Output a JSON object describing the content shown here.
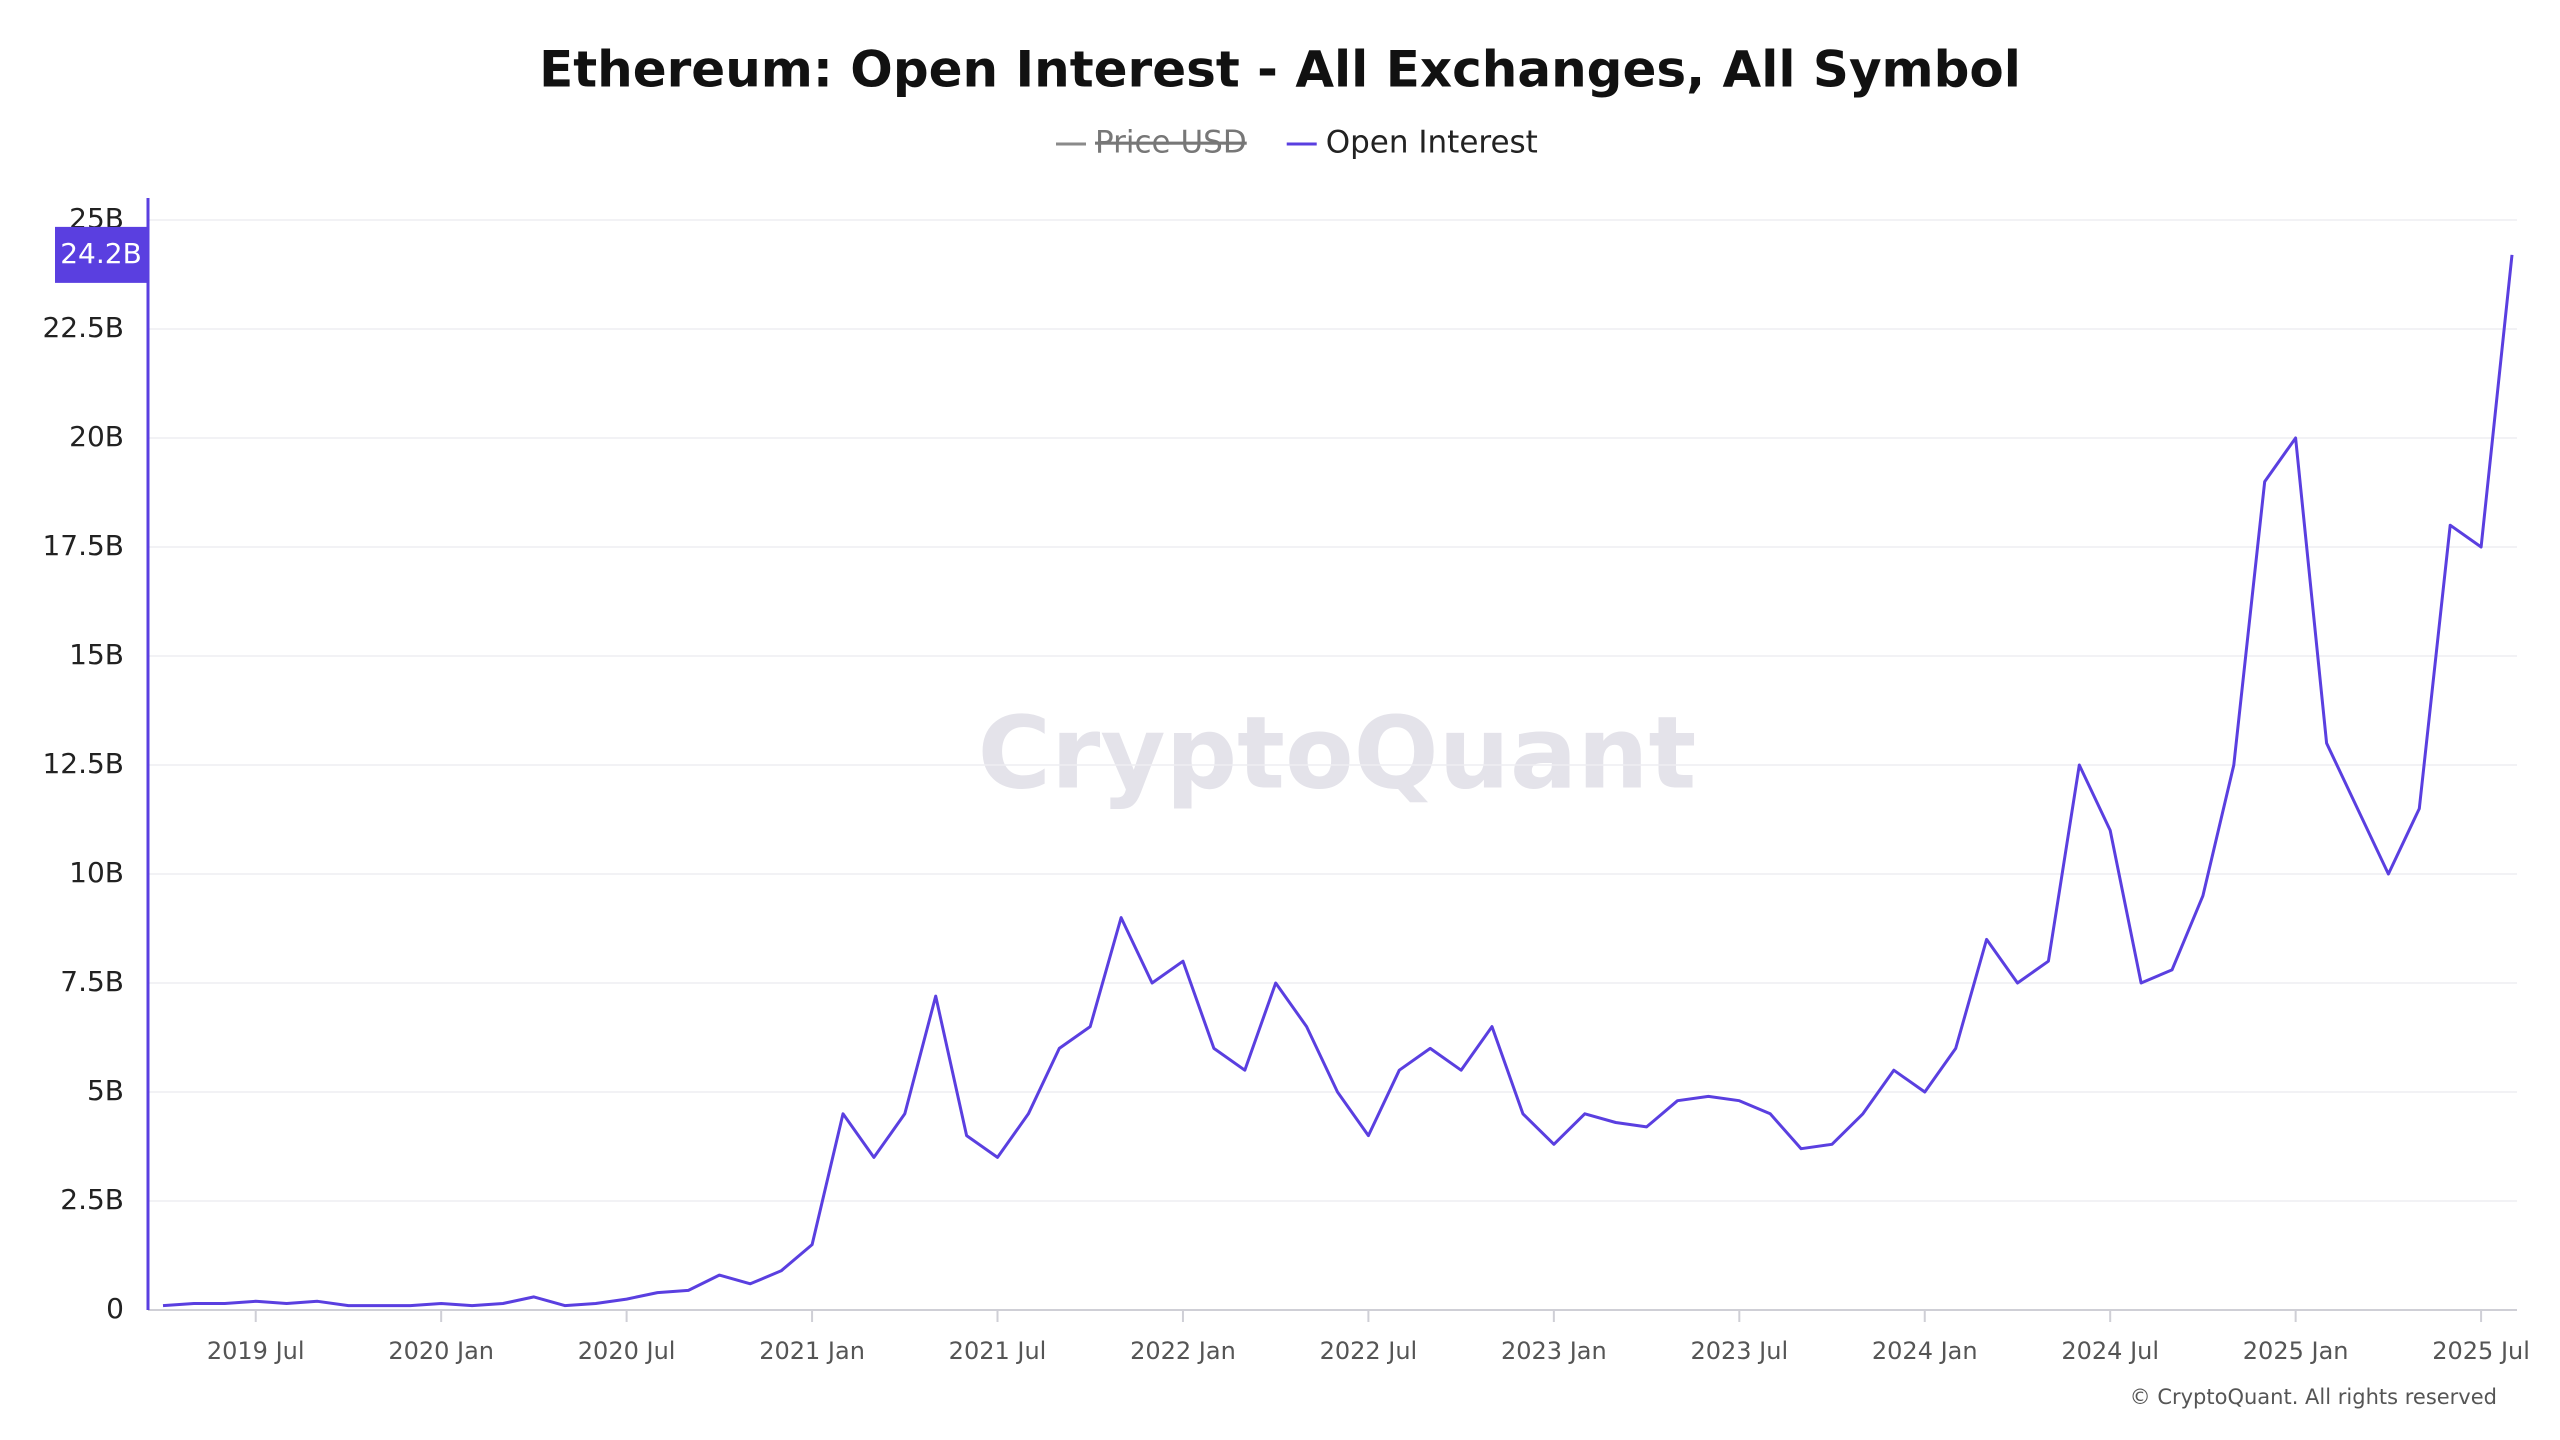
{
  "chart_data": {
    "type": "line",
    "title": "Ethereum: Open Interest - All Exchanges, All Symbol",
    "watermark": "CryptoQuant",
    "credit": "© CryptoQuant. All rights reserved",
    "hidden_series": [
      {
        "name": "Price USD",
        "color": "#8a8a8a"
      }
    ],
    "x": [
      "2019-04",
      "2019-05",
      "2019-06",
      "2019-07",
      "2019-08",
      "2019-09",
      "2019-10",
      "2019-11",
      "2019-12",
      "2020-01",
      "2020-02",
      "2020-03",
      "2020-04",
      "2020-05",
      "2020-06",
      "2020-07",
      "2020-08",
      "2020-09",
      "2020-10",
      "2020-11",
      "2020-12",
      "2021-01",
      "2021-02",
      "2021-03",
      "2021-04",
      "2021-05",
      "2021-06",
      "2021-07",
      "2021-08",
      "2021-09",
      "2021-10",
      "2021-11",
      "2021-12",
      "2022-01",
      "2022-02",
      "2022-03",
      "2022-04",
      "2022-05",
      "2022-06",
      "2022-07",
      "2022-08",
      "2022-09",
      "2022-10",
      "2022-11",
      "2022-12",
      "2023-01",
      "2023-02",
      "2023-03",
      "2023-04",
      "2023-05",
      "2023-06",
      "2023-07",
      "2023-08",
      "2023-09",
      "2023-10",
      "2023-11",
      "2023-12",
      "2024-01",
      "2024-02",
      "2024-03",
      "2024-04",
      "2024-05",
      "2024-06",
      "2024-07",
      "2024-08",
      "2024-09",
      "2024-10",
      "2024-11",
      "2024-12",
      "2025-01",
      "2025-02",
      "2025-03",
      "2025-04",
      "2025-05",
      "2025-06",
      "2025-07",
      "2025-08"
    ],
    "series": [
      {
        "name": "Open Interest",
        "color": "#5a3fe0",
        "values": [
          0.1,
          0.15,
          0.15,
          0.2,
          0.15,
          0.2,
          0.1,
          0.1,
          0.1,
          0.15,
          0.1,
          0.15,
          0.3,
          0.1,
          0.15,
          0.25,
          0.4,
          0.45,
          0.8,
          0.6,
          0.9,
          1.5,
          4.5,
          3.5,
          4.5,
          7.2,
          4.0,
          3.5,
          4.5,
          6.0,
          6.5,
          9.0,
          7.5,
          8.0,
          6.0,
          5.5,
          7.5,
          6.5,
          5.0,
          4.0,
          5.5,
          6.0,
          5.5,
          6.5,
          4.5,
          3.8,
          4.5,
          4.3,
          4.2,
          4.8,
          4.9,
          4.8,
          4.5,
          3.7,
          3.8,
          4.5,
          5.5,
          5.0,
          6.0,
          8.5,
          7.5,
          8.0,
          12.5,
          11.0,
          7.5,
          7.8,
          9.5,
          12.5,
          19.0,
          20.0,
          13.0,
          11.5,
          10.0,
          11.5,
          18.0,
          17.5,
          24.2
        ]
      }
    ],
    "last_value": {
      "value": 24.2,
      "label": "24.2B"
    },
    "xlim": [
      "2019-04",
      "2025-08"
    ],
    "xticks": [
      {
        "value": "2019-07",
        "label": "2019 Jul"
      },
      {
        "value": "2020-01",
        "label": "2020 Jan"
      },
      {
        "value": "2020-07",
        "label": "2020 Jul"
      },
      {
        "value": "2021-01",
        "label": "2021 Jan"
      },
      {
        "value": "2021-07",
        "label": "2021 Jul"
      },
      {
        "value": "2022-01",
        "label": "2022 Jan"
      },
      {
        "value": "2022-07",
        "label": "2022 Jul"
      },
      {
        "value": "2023-01",
        "label": "2023 Jan"
      },
      {
        "value": "2023-07",
        "label": "2023 Jul"
      },
      {
        "value": "2024-01",
        "label": "2024 Jan"
      },
      {
        "value": "2024-07",
        "label": "2024 Jul"
      },
      {
        "value": "2025-01",
        "label": "2025 Jan"
      },
      {
        "value": "2025-07",
        "label": "2025 Jul"
      }
    ],
    "ylim": [
      0,
      25
    ],
    "yticks": [
      0,
      {
        "value": 2.5,
        "label": "2.5B"
      },
      {
        "value": 5,
        "label": "5B"
      },
      {
        "value": 7.5,
        "label": "7.5B"
      },
      {
        "value": 10,
        "label": "10B"
      },
      {
        "value": 12.5,
        "label": "12.5B"
      },
      {
        "value": 15,
        "label": "15B"
      },
      {
        "value": 17.5,
        "label": "17.5B"
      },
      {
        "value": 20,
        "label": "20B"
      },
      {
        "value": 22.5,
        "label": "22.5B"
      },
      {
        "value": 25,
        "label": "25B"
      }
    ],
    "grid": true
  }
}
